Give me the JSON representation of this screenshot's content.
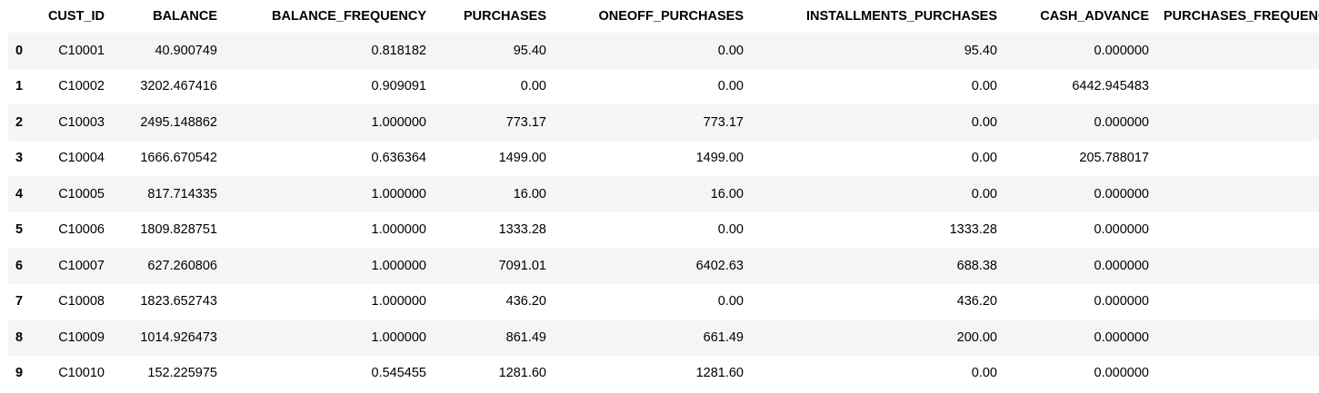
{
  "dataframe": {
    "columns": [
      "",
      "CUST_ID",
      "BALANCE",
      "BALANCE_FREQUENCY",
      "PURCHASES",
      "ONEOFF_PURCHASES",
      "INSTALLMENTS_PURCHASES",
      "CASH_ADVANCE",
      "PURCHASES_FREQUENCY"
    ],
    "rows": [
      {
        "index": "0",
        "cust_id": "C10001",
        "balance": "40.900749",
        "balance_frequency": "0.818182",
        "purchases": "95.40",
        "oneoff_purchases": "0.00",
        "installments_purchases": "95.40",
        "cash_advance": "0.000000",
        "purchases_frequency": ""
      },
      {
        "index": "1",
        "cust_id": "C10002",
        "balance": "3202.467416",
        "balance_frequency": "0.909091",
        "purchases": "0.00",
        "oneoff_purchases": "0.00",
        "installments_purchases": "0.00",
        "cash_advance": "6442.945483",
        "purchases_frequency": ""
      },
      {
        "index": "2",
        "cust_id": "C10003",
        "balance": "2495.148862",
        "balance_frequency": "1.000000",
        "purchases": "773.17",
        "oneoff_purchases": "773.17",
        "installments_purchases": "0.00",
        "cash_advance": "0.000000",
        "purchases_frequency": ""
      },
      {
        "index": "3",
        "cust_id": "C10004",
        "balance": "1666.670542",
        "balance_frequency": "0.636364",
        "purchases": "1499.00",
        "oneoff_purchases": "1499.00",
        "installments_purchases": "0.00",
        "cash_advance": "205.788017",
        "purchases_frequency": ""
      },
      {
        "index": "4",
        "cust_id": "C10005",
        "balance": "817.714335",
        "balance_frequency": "1.000000",
        "purchases": "16.00",
        "oneoff_purchases": "16.00",
        "installments_purchases": "0.00",
        "cash_advance": "0.000000",
        "purchases_frequency": ""
      },
      {
        "index": "5",
        "cust_id": "C10006",
        "balance": "1809.828751",
        "balance_frequency": "1.000000",
        "purchases": "1333.28",
        "oneoff_purchases": "0.00",
        "installments_purchases": "1333.28",
        "cash_advance": "0.000000",
        "purchases_frequency": ""
      },
      {
        "index": "6",
        "cust_id": "C10007",
        "balance": "627.260806",
        "balance_frequency": "1.000000",
        "purchases": "7091.01",
        "oneoff_purchases": "6402.63",
        "installments_purchases": "688.38",
        "cash_advance": "0.000000",
        "purchases_frequency": ""
      },
      {
        "index": "7",
        "cust_id": "C10008",
        "balance": "1823.652743",
        "balance_frequency": "1.000000",
        "purchases": "436.20",
        "oneoff_purchases": "0.00",
        "installments_purchases": "436.20",
        "cash_advance": "0.000000",
        "purchases_frequency": ""
      },
      {
        "index": "8",
        "cust_id": "C10009",
        "balance": "1014.926473",
        "balance_frequency": "1.000000",
        "purchases": "861.49",
        "oneoff_purchases": "661.49",
        "installments_purchases": "200.00",
        "cash_advance": "0.000000",
        "purchases_frequency": ""
      },
      {
        "index": "9",
        "cust_id": "C10010",
        "balance": "152.225975",
        "balance_frequency": "0.545455",
        "purchases": "1281.60",
        "oneoff_purchases": "1281.60",
        "installments_purchases": "0.00",
        "cash_advance": "0.000000",
        "purchases_frequency": ""
      }
    ]
  }
}
